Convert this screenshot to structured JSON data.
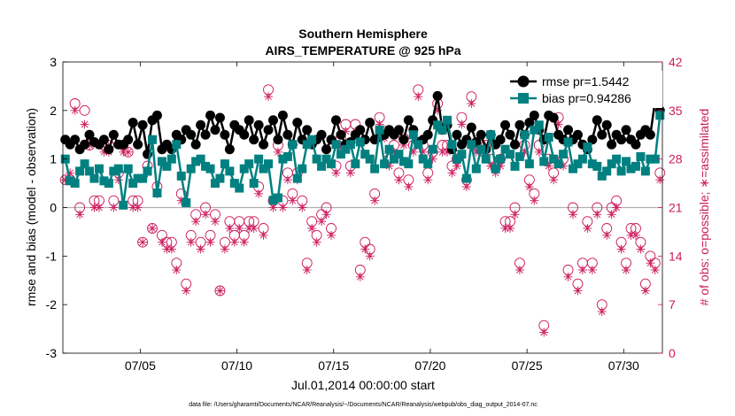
{
  "chart_data": {
    "type": "line",
    "title": "Southern Hemisphere",
    "subtitle": "AIRS_TEMPERATURE @ 925 hPa",
    "xlabel": "Jul.01,2014 00:00:00 start",
    "ylabel_left": "rmse and bias (model - observation)",
    "ylabel_right": "# of obs: o=possible; ∗=assimilated",
    "footnote": "data file: /Users/gharamti/Documents/NCAR/Reanalysis/~/Documents/NCAR/Reanalysis/webpub/obs_diag_output_2014-07.nc",
    "xlim": [
      1.0,
      32.0
    ],
    "ylim_left": [
      -3,
      3
    ],
    "ylim_right": [
      0,
      42
    ],
    "x_ticks": [
      5,
      10,
      15,
      20,
      25,
      30
    ],
    "x_tick_labels": [
      "07/05",
      "07/10",
      "07/15",
      "07/20",
      "07/25",
      "07/30"
    ],
    "y_ticks_left": [
      -3,
      -2,
      -1,
      0,
      1,
      2,
      3
    ],
    "y_tick_labels_left": [
      "-3",
      "-2",
      "-1",
      "0",
      "1",
      "2",
      "3"
    ],
    "y_ticks_right": [
      0,
      7,
      14,
      21,
      28,
      35,
      42
    ],
    "y_tick_labels_right": [
      "0",
      "7",
      "14",
      "21",
      "28",
      "35",
      "42"
    ],
    "legend": [
      {
        "name": "rmse",
        "label": "rmse pr=1.5442",
        "color": "#000000",
        "marker": "circle"
      },
      {
        "name": "bias",
        "label": "bias pr=0.94286",
        "color": "#008080",
        "marker": "square"
      }
    ],
    "legend_position": "top-right",
    "colors": {
      "rmse": "#000000",
      "bias": "#008080",
      "obs": "#cc1a5c",
      "zero_line": "#b0b0b0"
    },
    "x": [
      1.125,
      1.375,
      1.625,
      1.875,
      2.125,
      2.375,
      2.625,
      2.875,
      3.125,
      3.375,
      3.625,
      3.875,
      4.125,
      4.375,
      4.625,
      4.875,
      5.125,
      5.375,
      5.625,
      5.875,
      6.125,
      6.375,
      6.625,
      6.875,
      7.125,
      7.375,
      7.625,
      7.875,
      8.125,
      8.375,
      8.625,
      8.875,
      9.125,
      9.375,
      9.625,
      9.875,
      10.125,
      10.375,
      10.625,
      10.875,
      11.125,
      11.375,
      11.625,
      11.875,
      12.125,
      12.375,
      12.625,
      12.875,
      13.125,
      13.375,
      13.625,
      13.875,
      14.125,
      14.375,
      14.625,
      14.875,
      15.125,
      15.375,
      15.625,
      15.875,
      16.125,
      16.375,
      16.625,
      16.875,
      17.125,
      17.375,
      17.625,
      17.875,
      18.125,
      18.375,
      18.625,
      18.875,
      19.125,
      19.375,
      19.625,
      19.875,
      20.125,
      20.375,
      20.625,
      20.875,
      21.125,
      21.375,
      21.625,
      21.875,
      22.125,
      22.375,
      22.625,
      22.875,
      23.125,
      23.375,
      23.625,
      23.875,
      24.125,
      24.375,
      24.625,
      24.875,
      25.125,
      25.375,
      25.625,
      25.875,
      26.125,
      26.375,
      26.625,
      26.875,
      27.125,
      27.375,
      27.625,
      27.875,
      28.125,
      28.375,
      28.625,
      28.875,
      29.125,
      29.375,
      29.625,
      29.875,
      30.125,
      30.375,
      30.625,
      30.875,
      31.125,
      31.375,
      31.625,
      31.875
    ],
    "series": [
      {
        "name": "rmse",
        "values": [
          1.4,
          1.3,
          1.4,
          1.2,
          1.3,
          1.5,
          1.35,
          1.3,
          1.4,
          1.2,
          1.5,
          1.3,
          1.3,
          1.4,
          1.75,
          1.3,
          1.7,
          1.1,
          1.8,
          1.9,
          1.2,
          1.3,
          1.2,
          1.5,
          1.4,
          1.6,
          1.5,
          1.3,
          1.7,
          1.5,
          1.9,
          1.6,
          1.85,
          1.5,
          1.2,
          1.7,
          1.6,
          1.5,
          1.8,
          1.4,
          1.7,
          1.3,
          1.6,
          1.8,
          1.4,
          1.9,
          1.5,
          1.3,
          1.75,
          1.4,
          1.6,
          1.3,
          1.4,
          1.5,
          1.2,
          1.4,
          1.8,
          1.5,
          1.3,
          1.35,
          1.5,
          1.6,
          1.4,
          1.75,
          1.4,
          1.45,
          1.5,
          1.6,
          1.5,
          1.6,
          1.4,
          1.8,
          1.6,
          1.35,
          1.4,
          1.5,
          1.8,
          2.3,
          1.6,
          1.7,
          1.2,
          1.5,
          1.3,
          1.4,
          1.65,
          1.35,
          1.5,
          1.2,
          1.5,
          1.3,
          1.4,
          1.7,
          1.5,
          1.3,
          1.7,
          1.5,
          1.75,
          1.9,
          1.6,
          1.4,
          1.9,
          1.85,
          1.5,
          1.4,
          1.6,
          1.4,
          1.5,
          1.3,
          1.2,
          1.4,
          1.8,
          1.5,
          1.7,
          1.3,
          1.5,
          1.4,
          1.6,
          1.4,
          1.3,
          1.5,
          1.6,
          1.5,
          2.2,
          2.0
        ]
      },
      {
        "name": "bias",
        "values": [
          1.0,
          0.55,
          0.5,
          0.75,
          0.9,
          0.75,
          0.6,
          0.8,
          0.55,
          0.5,
          0.75,
          0.8,
          0.05,
          0.8,
          0.5,
          0.6,
          0.6,
          0.75,
          1.4,
          0.3,
          0.95,
          0.85,
          1.0,
          1.3,
          0.65,
          0.1,
          0.8,
          0.95,
          1.0,
          0.85,
          0.8,
          0.5,
          0.6,
          0.9,
          0.75,
          0.5,
          0.4,
          0.8,
          0.9,
          0.5,
          1.0,
          0.8,
          0.9,
          0.15,
          0.2,
          1.0,
          1.05,
          1.3,
          0.6,
          0.8,
          1.3,
          1.4,
          1.0,
          0.85,
          1.0,
          0.9,
          1.3,
          1.1,
          1.2,
          1.3,
          0.9,
          1.35,
          1.1,
          1.0,
          0.8,
          1.6,
          0.9,
          1.2,
          1.0,
          1.1,
          0.95,
          0.9,
          1.5,
          1.3,
          1.0,
          0.9,
          1.2,
          1.7,
          1.6,
          1.8,
          1.3,
          1.0,
          1.1,
          0.6,
          1.3,
          0.8,
          1.2,
          1.0,
          1.5,
          0.8,
          1.0,
          1.2,
          1.1,
          0.85,
          1.05,
          1.5,
          0.9,
          1.6,
          1.7,
          0.95,
          1.45,
          1.0,
          0.9,
          1.1,
          1.35,
          0.8,
          0.9,
          1.0,
          1.25,
          0.9,
          0.85,
          0.65,
          0.75,
          0.9,
          1.0,
          0.75,
          0.95,
          0.8,
          0.85,
          1.05,
          0.75,
          1.0,
          1.0,
          1.9
        ]
      },
      {
        "name": "obs_possible",
        "values": [
          25,
          25,
          36,
          21,
          35,
          30,
          22,
          22,
          30,
          30,
          22,
          26,
          30,
          29,
          22,
          22,
          16,
          27,
          18,
          24,
          17,
          16,
          16,
          13,
          23,
          10,
          17,
          20,
          16,
          21,
          17,
          20,
          9,
          16,
          19,
          17,
          19,
          17,
          19,
          19,
          24,
          18,
          38,
          22,
          30,
          22,
          26,
          23,
          26,
          22,
          13,
          19,
          17,
          20,
          21,
          18,
          27,
          31,
          33,
          27,
          33,
          12,
          16,
          15,
          23,
          34,
          32,
          28,
          30,
          26,
          31,
          25,
          30,
          38,
          30,
          26,
          29,
          36,
          30,
          30,
          27,
          28,
          34,
          25,
          37,
          30,
          30,
          30,
          28,
          27,
          28,
          19,
          19,
          21,
          13,
          30,
          25,
          23,
          30,
          4,
          28,
          26,
          34,
          28,
          12,
          21,
          10,
          13,
          19,
          13,
          21,
          7,
          18,
          21,
          22,
          16,
          13,
          18,
          18,
          16,
          10,
          14,
          13,
          26
        ]
      },
      {
        "name": "obs_assimilated",
        "values": [
          25,
          26,
          35,
          20,
          33,
          30,
          21,
          21,
          29,
          29,
          21,
          25,
          29,
          29,
          21,
          21,
          16,
          26,
          18,
          23,
          16,
          15,
          15,
          12,
          22,
          9,
          16,
          19,
          15,
          20,
          16,
          19,
          9,
          15,
          18,
          16,
          18,
          16,
          18,
          18,
          23,
          17,
          37,
          21,
          29,
          21,
          25,
          22,
          25,
          21,
          12,
          18,
          16,
          19,
          20,
          17,
          26,
          30,
          32,
          26,
          32,
          11,
          15,
          14,
          22,
          33,
          31,
          27,
          29,
          25,
          30,
          24,
          29,
          37,
          29,
          25,
          28,
          35,
          29,
          29,
          26,
          27,
          33,
          24,
          36,
          29,
          29,
          29,
          27,
          26,
          27,
          18,
          18,
          20,
          12,
          29,
          24,
          22,
          29,
          3,
          27,
          25,
          33,
          27,
          11,
          20,
          9,
          12,
          18,
          12,
          20,
          6,
          17,
          20,
          21,
          15,
          12,
          17,
          17,
          15,
          9,
          13,
          12,
          25
        ]
      }
    ]
  }
}
